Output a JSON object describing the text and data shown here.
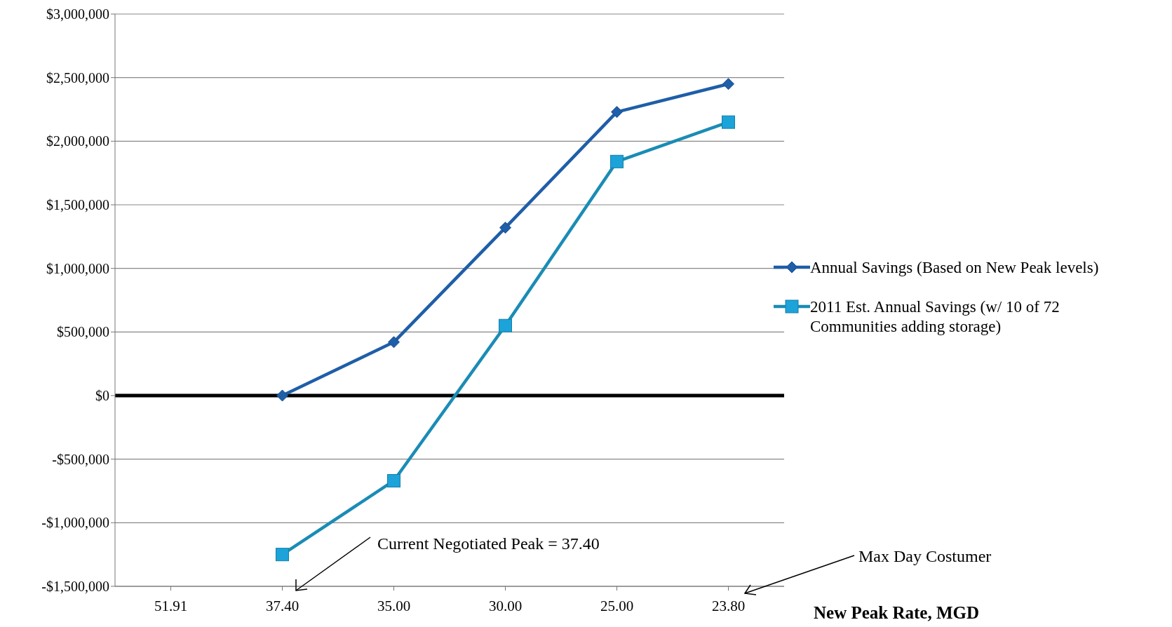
{
  "chart_data": {
    "type": "line",
    "xlabel": "New Peak Rate, MGD",
    "categories": [
      "51.91",
      "37.40",
      "35.00",
      "30.00",
      "25.00",
      "23.80"
    ],
    "series": [
      {
        "name": "Annual Savings (Based on New Peak levels)",
        "color": "#1f5ea8",
        "marker": "diamond",
        "values": [
          null,
          0,
          420000,
          1320000,
          2230000,
          2450000
        ]
      },
      {
        "name": "2011 Est. Annual Savings (w/ 10 of 72 Communities adding storage)",
        "color": "#1a8cb5",
        "marker": "square",
        "values": [
          null,
          -1250000,
          -670000,
          550000,
          1840000,
          2150000
        ]
      }
    ],
    "ylim": [
      -1500000,
      3000000
    ],
    "yticks": [
      {
        "value": -1500000,
        "label": "-$1,500,000"
      },
      {
        "value": -1000000,
        "label": "-$1,000,000"
      },
      {
        "value": -500000,
        "label": "-$500,000"
      },
      {
        "value": 0,
        "label": "$0"
      },
      {
        "value": 500000,
        "label": "$500,000"
      },
      {
        "value": 1000000,
        "label": "$1,000,000"
      },
      {
        "value": 1500000,
        "label": "$1,500,000"
      },
      {
        "value": 2000000,
        "label": "$2,000,000"
      },
      {
        "value": 2500000,
        "label": "$2,500,000"
      },
      {
        "value": 3000000,
        "label": "$3,000,000"
      }
    ],
    "grid": "y",
    "legend": "right",
    "line_style": "solid",
    "ref_lines": [
      {
        "axis": "y",
        "value": 0,
        "color": "#000000"
      }
    ],
    "annotations": [
      "Current Negotiated Peak = 37.40",
      "Max Day Costumer"
    ]
  }
}
